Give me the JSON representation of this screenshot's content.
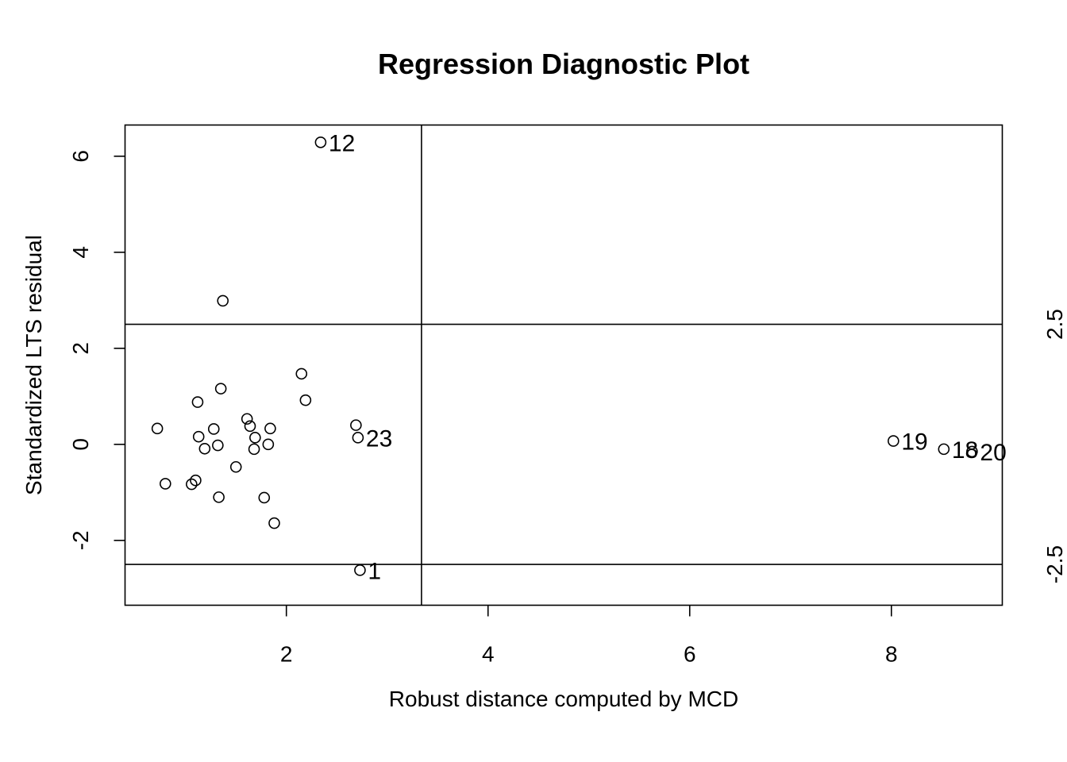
{
  "chart_data": {
    "type": "scatter",
    "title": "Regression Diagnostic Plot",
    "xlabel": "Robust distance computed by MCD",
    "ylabel": "Standardized LTS residual",
    "xlim": [
      0.4,
      9.1
    ],
    "ylim": [
      -3.35,
      6.65
    ],
    "x_ticks": [
      2,
      4,
      6,
      8
    ],
    "y_ticks": [
      -2,
      0,
      2,
      4,
      6
    ],
    "x_tick_labels": [
      "2",
      "4",
      "6",
      "8"
    ],
    "y_tick_labels": [
      "-2",
      "0",
      "2",
      "4",
      "6"
    ],
    "cutoff_x": 3.34,
    "cutoff_y": [
      2.5,
      -2.5
    ],
    "cutoff_y_labels": [
      "2.5",
      "-2.5"
    ],
    "grid": false,
    "legend": "none",
    "points": [
      {
        "x": 0.72,
        "y": 0.33,
        "label": ""
      },
      {
        "x": 0.8,
        "y": -0.82,
        "label": ""
      },
      {
        "x": 1.06,
        "y": -0.83,
        "label": ""
      },
      {
        "x": 1.1,
        "y": -0.75,
        "label": ""
      },
      {
        "x": 1.12,
        "y": 0.88,
        "label": ""
      },
      {
        "x": 1.13,
        "y": 0.16,
        "label": ""
      },
      {
        "x": 1.19,
        "y": -0.09,
        "label": ""
      },
      {
        "x": 1.28,
        "y": 0.32,
        "label": ""
      },
      {
        "x": 1.32,
        "y": -0.02,
        "label": ""
      },
      {
        "x": 1.33,
        "y": -1.1,
        "label": ""
      },
      {
        "x": 1.35,
        "y": 1.16,
        "label": ""
      },
      {
        "x": 1.37,
        "y": 2.99,
        "label": ""
      },
      {
        "x": 1.5,
        "y": -0.47,
        "label": ""
      },
      {
        "x": 1.61,
        "y": 0.53,
        "label": ""
      },
      {
        "x": 1.64,
        "y": 0.38,
        "label": ""
      },
      {
        "x": 1.68,
        "y": -0.1,
        "label": ""
      },
      {
        "x": 1.69,
        "y": 0.14,
        "label": ""
      },
      {
        "x": 1.78,
        "y": -1.11,
        "label": ""
      },
      {
        "x": 1.82,
        "y": 0.0,
        "label": ""
      },
      {
        "x": 1.84,
        "y": 0.33,
        "label": ""
      },
      {
        "x": 1.88,
        "y": -1.64,
        "label": ""
      },
      {
        "x": 2.15,
        "y": 1.47,
        "label": ""
      },
      {
        "x": 2.19,
        "y": 0.92,
        "label": ""
      },
      {
        "x": 2.34,
        "y": 6.29,
        "label": "12"
      },
      {
        "x": 2.69,
        "y": 0.4,
        "label": ""
      },
      {
        "x": 2.71,
        "y": 0.14,
        "label": "23"
      },
      {
        "x": 2.73,
        "y": -2.62,
        "label": "1"
      },
      {
        "x": 8.02,
        "y": 0.07,
        "label": "19"
      },
      {
        "x": 8.52,
        "y": -0.1,
        "label": "18"
      },
      {
        "x": 8.8,
        "y": -0.15,
        "label": "20"
      }
    ]
  }
}
